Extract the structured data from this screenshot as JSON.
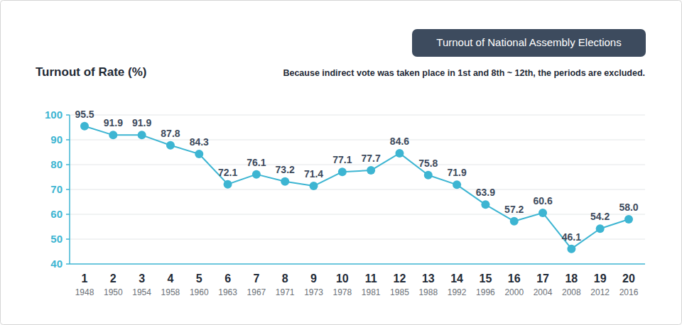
{
  "chart_data": {
    "type": "line",
    "title": "Turnout of National Assembly Elections",
    "y_label": "Turnout of Rate (%)",
    "subtitle": "Because indirect vote was taken place in 1st and 8th ~ 12th, the periods are excluded.",
    "categories": [
      "1",
      "2",
      "3",
      "4",
      "5",
      "6",
      "7",
      "8",
      "9",
      "10",
      "11",
      "12",
      "13",
      "14",
      "15",
      "16",
      "17",
      "18",
      "19",
      "20"
    ],
    "years": [
      "1948",
      "1950",
      "1954",
      "1958",
      "1960",
      "1963",
      "1967",
      "1971",
      "1973",
      "1978",
      "1981",
      "1985",
      "1988",
      "1992",
      "1996",
      "2000",
      "2004",
      "2008",
      "2012",
      "2016"
    ],
    "values": [
      95.5,
      91.9,
      91.9,
      87.8,
      84.3,
      72.1,
      76.1,
      73.2,
      71.4,
      77.1,
      77.7,
      84.6,
      75.8,
      71.9,
      63.9,
      57.2,
      60.6,
      46.1,
      54.2,
      58.0
    ],
    "value_labels": [
      "95.5",
      "91.9",
      "91.9",
      "87.8",
      "84.3",
      "72.1",
      "76.1",
      "73.2",
      "71.4",
      "77.1",
      "77.7",
      "84.6",
      "75.8",
      "71.9",
      "63.9",
      "57.2",
      "60.6",
      "46.1",
      "54.2",
      "58.0"
    ],
    "color": "#3db5d2",
    "marker": "circle",
    "ylim": [
      40,
      100
    ],
    "yticks": [
      40,
      50,
      60,
      70,
      80,
      90,
      100
    ],
    "grid": true,
    "data_labels": true
  }
}
